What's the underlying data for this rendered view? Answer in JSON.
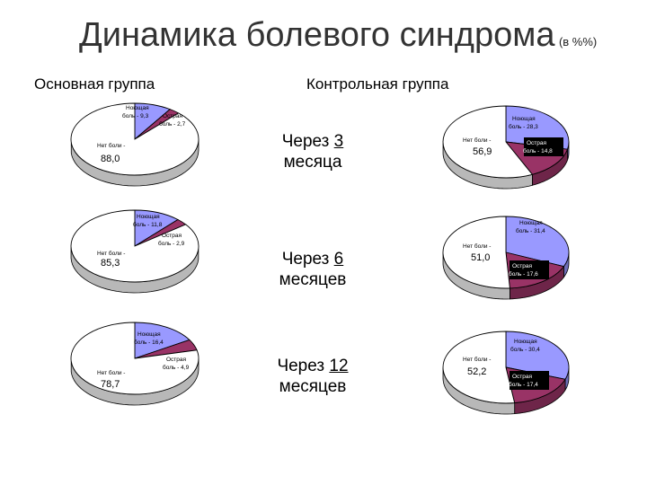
{
  "title": {
    "main": "Динамика болевого синдрома",
    "unit": "(в %%)"
  },
  "columns": {
    "main": "Основная группа",
    "control": "Контрольная группа"
  },
  "periods": [
    {
      "prefix": "Через ",
      "num": "3",
      "suffix": "месяца"
    },
    {
      "prefix": "Через ",
      "num": "6",
      "suffix": "месяцев"
    },
    {
      "prefix": "Через ",
      "num": "12",
      "suffix": "месяцев"
    }
  ],
  "colors": {
    "none": "#ffffff",
    "dull": "#9999ff",
    "acute": "#993366"
  },
  "chart_data": [
    {
      "type": "pie",
      "group": "Основная группа",
      "period": "3",
      "slices": [
        {
          "label": "Нет боли -",
          "value": 88.0,
          "value_label": "88,0",
          "color": "#ffffff"
        },
        {
          "label": "Ноющая боль -",
          "value": 9.3,
          "value_label": "9,3",
          "color": "#9999ff"
        },
        {
          "label": "Острая боль -",
          "value": 2.7,
          "value_label": "2,7",
          "color": "#993366"
        }
      ]
    },
    {
      "type": "pie",
      "group": "Основная группа",
      "period": "6",
      "slices": [
        {
          "label": "Нет боли -",
          "value": 85.3,
          "value_label": "85,3",
          "color": "#ffffff"
        },
        {
          "label": "Ноющая боль -",
          "value": 11.8,
          "value_label": "11,8",
          "color": "#9999ff"
        },
        {
          "label": "Острая боль -",
          "value": 2.9,
          "value_label": "2,9",
          "color": "#993366"
        }
      ]
    },
    {
      "type": "pie",
      "group": "Основная группа",
      "period": "12",
      "slices": [
        {
          "label": "Нет боли -",
          "value": 78.7,
          "value_label": "78,7",
          "color": "#ffffff"
        },
        {
          "label": "Ноющая боль -",
          "value": 16.4,
          "value_label": "16,4",
          "color": "#9999ff"
        },
        {
          "label": "Острая боль -",
          "value": 4.9,
          "value_label": "4,9",
          "color": "#993366"
        }
      ]
    },
    {
      "type": "pie",
      "group": "Контрольная группа",
      "period": "3",
      "slices": [
        {
          "label": "Нет боли -",
          "value": 56.9,
          "value_label": "56,9",
          "color": "#ffffff"
        },
        {
          "label": "Ноющая боль -",
          "value": 28.3,
          "value_label": "28,3",
          "color": "#9999ff"
        },
        {
          "label": "Острая боль -",
          "value": 14.8,
          "value_label": "14,8",
          "color": "#993366"
        }
      ]
    },
    {
      "type": "pie",
      "group": "Контрольная группа",
      "period": "6",
      "slices": [
        {
          "label": "Нет боли -",
          "value": 51.0,
          "value_label": "51,0",
          "color": "#ffffff"
        },
        {
          "label": "Ноющая боль -",
          "value": 31.4,
          "value_label": "31,4",
          "color": "#9999ff"
        },
        {
          "label": "Острая боль -",
          "value": 17.6,
          "value_label": "17,6",
          "color": "#993366"
        }
      ]
    },
    {
      "type": "pie",
      "group": "Контрольная группа",
      "period": "12",
      "slices": [
        {
          "label": "Нет боли -",
          "value": 52.2,
          "value_label": "52,2",
          "color": "#ffffff"
        },
        {
          "label": "Ноющая боль -",
          "value": 30.4,
          "value_label": "30,4",
          "color": "#9999ff"
        },
        {
          "label": "Острая боль -",
          "value": 17.4,
          "value_label": "17,4",
          "color": "#993366"
        }
      ]
    }
  ]
}
